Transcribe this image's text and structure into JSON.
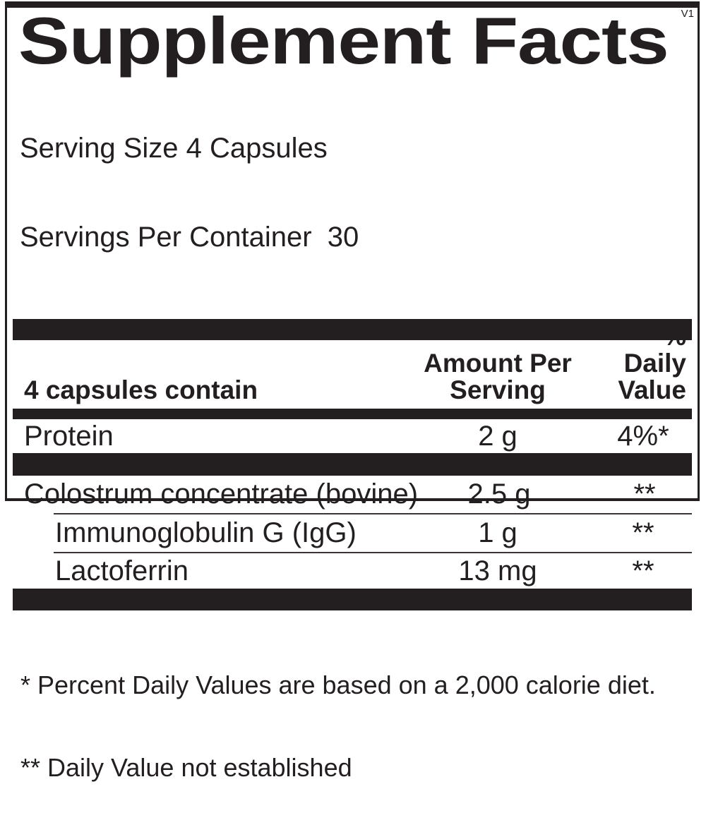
{
  "label": {
    "version": "V1",
    "title": "Supplement Facts",
    "serving_size_line": "Serving Size 4 Capsules",
    "servings_per_container_line": "Servings Per Container  30"
  },
  "table": {
    "header": {
      "name_column": "4 capsules contain",
      "amount_column": "Amount Per\nServing",
      "dv_column": "% Daily\nValue"
    },
    "rows": [
      {
        "name": "Protein",
        "amount": "2 g",
        "dv": "4%*",
        "indent": false
      },
      {
        "name": "Colostrum concentrate (bovine)",
        "amount": "2.5 g",
        "dv": "**",
        "indent": false
      },
      {
        "name": "Immunoglobulin G (IgG)",
        "amount": "1 g",
        "dv": "**",
        "indent": true
      },
      {
        "name": "Lactoferrin",
        "amount": "13 mg",
        "dv": "**",
        "indent": true
      }
    ]
  },
  "footnotes": {
    "daily_value": "* Percent Daily Values are based on a 2,000 calorie diet.",
    "not_established": "** Daily Value not established"
  },
  "colors": {
    "ink": "#231f20",
    "background": "#ffffff"
  }
}
